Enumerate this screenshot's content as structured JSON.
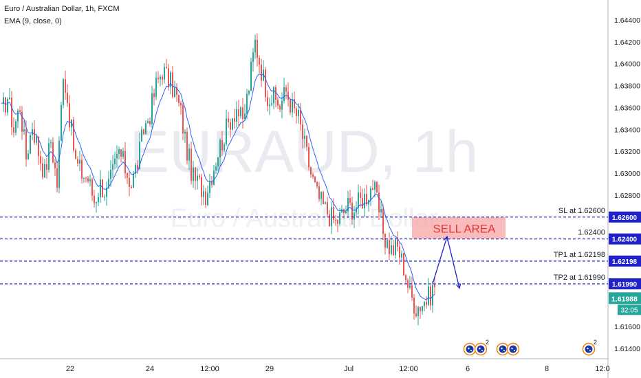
{
  "header": {
    "symbol_line": "Euro / Australian Dollar, 1h, FXCM",
    "indicator_line": "EMA (9, close, 0)"
  },
  "watermark": {
    "ticker": "EURAUD, 1h",
    "name": "Euro / Australian Dollar"
  },
  "colors": {
    "up": "#26a69a",
    "down": "#ef5350",
    "ema": "#2962ff",
    "level_line": "#1e22c8",
    "sell_area": "#f7a5a7",
    "sell_text": "#e53935",
    "axis_text": "#131722",
    "last_price_bg": "#26a69a"
  },
  "price_axis": {
    "ticks": [
      "1.64400",
      "1.64200",
      "1.64000",
      "1.63800",
      "1.63600",
      "1.63400",
      "1.63200",
      "1.63000",
      "1.62800",
      "1.61600",
      "1.61400"
    ],
    "tick_values": [
      1.644,
      1.642,
      1.64,
      1.638,
      1.636,
      1.634,
      1.632,
      1.63,
      1.628,
      1.616,
      1.614
    ]
  },
  "time_axis": {
    "labels": [
      "22",
      "24",
      "12:00",
      "29",
      "Jul",
      "12:00",
      "6",
      "8",
      "12:0"
    ]
  },
  "levels": [
    {
      "label": "SL at 1.62600",
      "badge": "1.62600",
      "price": 1.626
    },
    {
      "label": "1.62400",
      "badge": "1.62400",
      "price": 1.624
    },
    {
      "label": "TP1 at 1.62198",
      "badge": "1.62198",
      "price": 1.62198
    },
    {
      "label": "TP2 at 1.61990",
      "badge": "1.61990",
      "price": 1.6199
    }
  ],
  "sell_area": {
    "label": "SELL AREA",
    "top_price": 1.626,
    "bottom_price": 1.624
  },
  "last_price": {
    "price": "1.61988",
    "countdown": "32:05"
  },
  "event_markers": [
    {
      "icon": "au-flag-icon",
      "count": ""
    },
    {
      "icon": "eu-flag-icon",
      "count": "2"
    },
    {
      "icon": "au-flag-icon",
      "count": ""
    },
    {
      "icon": "au-flag-icon",
      "count": ""
    },
    {
      "icon": "eu-flag-icon",
      "count": "2"
    }
  ],
  "chart_data": {
    "type": "candlestick",
    "title": "Euro / Australian Dollar, 1h, FXCM",
    "ylim": [
      1.613,
      1.647
    ],
    "x_labels": [
      "22",
      "24",
      "12:00",
      "29",
      "Jul",
      "12:00",
      "6",
      "8",
      "12:0"
    ],
    "close_path": [
      [
        0,
        1.6355
      ],
      [
        3,
        1.637
      ],
      [
        6,
        1.634
      ],
      [
        9,
        1.6362
      ],
      [
        12,
        1.6315
      ],
      [
        15,
        1.6345
      ],
      [
        18,
        1.632
      ],
      [
        21,
        1.63
      ],
      [
        24,
        1.633
      ],
      [
        27,
        1.629
      ],
      [
        30,
        1.6395
      ],
      [
        33,
        1.6352
      ],
      [
        36,
        1.631
      ],
      [
        39,
        1.63
      ],
      [
        42,
        1.6295
      ],
      [
        45,
        1.6275
      ],
      [
        48,
        1.629
      ],
      [
        51,
        1.6282
      ],
      [
        54,
        1.63
      ],
      [
        57,
        1.632
      ],
      [
        60,
        1.6305
      ],
      [
        63,
        1.629
      ],
      [
        66,
        1.631
      ],
      [
        69,
        1.634
      ],
      [
        72,
        1.6355
      ],
      [
        75,
        1.638
      ],
      [
        78,
        1.6395
      ],
      [
        81,
        1.6385
      ],
      [
        84,
        1.6375
      ],
      [
        87,
        1.6355
      ],
      [
        90,
        1.632
      ],
      [
        93,
        1.6295
      ],
      [
        96,
        1.629
      ],
      [
        99,
        1.6282
      ],
      [
        102,
        1.63
      ],
      [
        105,
        1.632
      ],
      [
        108,
        1.6335
      ],
      [
        111,
        1.635
      ],
      [
        114,
        1.636
      ],
      [
        117,
        1.6345
      ],
      [
        120,
        1.638
      ],
      [
        123,
        1.642
      ],
      [
        126,
        1.6395
      ],
      [
        129,
        1.6372
      ],
      [
        132,
        1.6368
      ],
      [
        135,
        1.6362
      ],
      [
        138,
        1.6375
      ],
      [
        141,
        1.636
      ],
      [
        144,
        1.635
      ],
      [
        147,
        1.6325
      ],
      [
        150,
        1.63
      ],
      [
        153,
        1.628
      ],
      [
        156,
        1.627
      ],
      [
        159,
        1.6262
      ],
      [
        162,
        1.6255
      ],
      [
        165,
        1.6262
      ],
      [
        168,
        1.627
      ],
      [
        171,
        1.6268
      ],
      [
        174,
        1.6275
      ],
      [
        177,
        1.628
      ],
      [
        180,
        1.629
      ],
      [
        183,
        1.6265
      ],
      [
        186,
        1.624
      ],
      [
        189,
        1.623
      ],
      [
        192,
        1.6232
      ],
      [
        195,
        1.6215
      ],
      [
        198,
        1.619
      ],
      [
        201,
        1.6178
      ],
      [
        204,
        1.6182
      ],
      [
        207,
        1.6186
      ],
      [
        210,
        1.6198
      ]
    ],
    "ema": {
      "name": "EMA (9, close, 0)",
      "period": 9
    },
    "projection": [
      {
        "i": 209,
        "price": 1.6199
      },
      {
        "i": 216,
        "price": 1.6242
      },
      {
        "i": 222,
        "price": 1.6195
      }
    ],
    "levels": [
      1.626,
      1.624,
      1.62198,
      1.6199
    ]
  }
}
